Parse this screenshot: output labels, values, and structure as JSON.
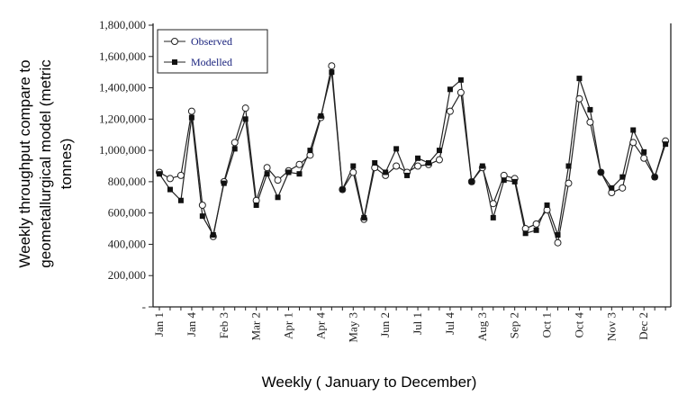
{
  "chart_data": {
    "type": "line",
    "title": "",
    "xlabel": "Weekly ( January to December)",
    "ylabel_lines": [
      "Weekly throughput compare to",
      "geometallurgical  model (metric",
      "tonnes)"
    ],
    "ylim": [
      0,
      1800000
    ],
    "yticks": [
      0,
      200000,
      400000,
      600000,
      800000,
      1000000,
      1200000,
      1400000,
      1600000,
      1800000
    ],
    "ytick_labels": [
      "-",
      "200,000",
      "400,000",
      "600,000",
      "800,000",
      "1,000,000",
      "1,200,000",
      "1,400,000",
      "1,600,000",
      "1,800,000"
    ],
    "xtick_labels": [
      "Jan 1",
      "Jan 4",
      "Feb 3",
      "Mar 2",
      "Apr 1",
      "Apr 4",
      "May 3",
      "Jun 2",
      "Jul 1",
      "Jul 4",
      "Aug 3",
      "Sep 2",
      "Oct 1",
      "Oct 4",
      "Nov 3",
      "Dec 2"
    ],
    "xtick_every": 3,
    "legend_position": "top-left",
    "series": [
      {
        "name": "Observed",
        "marker": "open-circle",
        "values": [
          860000,
          820000,
          840000,
          1250000,
          650000,
          450000,
          800000,
          1050000,
          1270000,
          680000,
          890000,
          810000,
          870000,
          910000,
          970000,
          1210000,
          1540000,
          750000,
          860000,
          560000,
          890000,
          840000,
          900000,
          860000,
          900000,
          910000,
          940000,
          1250000,
          1370000,
          800000,
          890000,
          660000,
          840000,
          820000,
          500000,
          530000,
          620000,
          410000,
          790000,
          1330000,
          1180000,
          860000,
          730000,
          760000,
          1050000,
          950000,
          830000,
          1060000
        ]
      },
      {
        "name": "Modelled",
        "marker": "filled-square",
        "values": [
          850000,
          750000,
          680000,
          1210000,
          580000,
          460000,
          790000,
          1010000,
          1200000,
          650000,
          850000,
          700000,
          860000,
          850000,
          1000000,
          1220000,
          1500000,
          750000,
          900000,
          570000,
          920000,
          860000,
          1010000,
          840000,
          950000,
          920000,
          1000000,
          1390000,
          1450000,
          800000,
          900000,
          570000,
          810000,
          800000,
          470000,
          490000,
          650000,
          460000,
          900000,
          1460000,
          1260000,
          860000,
          760000,
          830000,
          1130000,
          990000,
          830000,
          1040000
        ]
      }
    ]
  }
}
